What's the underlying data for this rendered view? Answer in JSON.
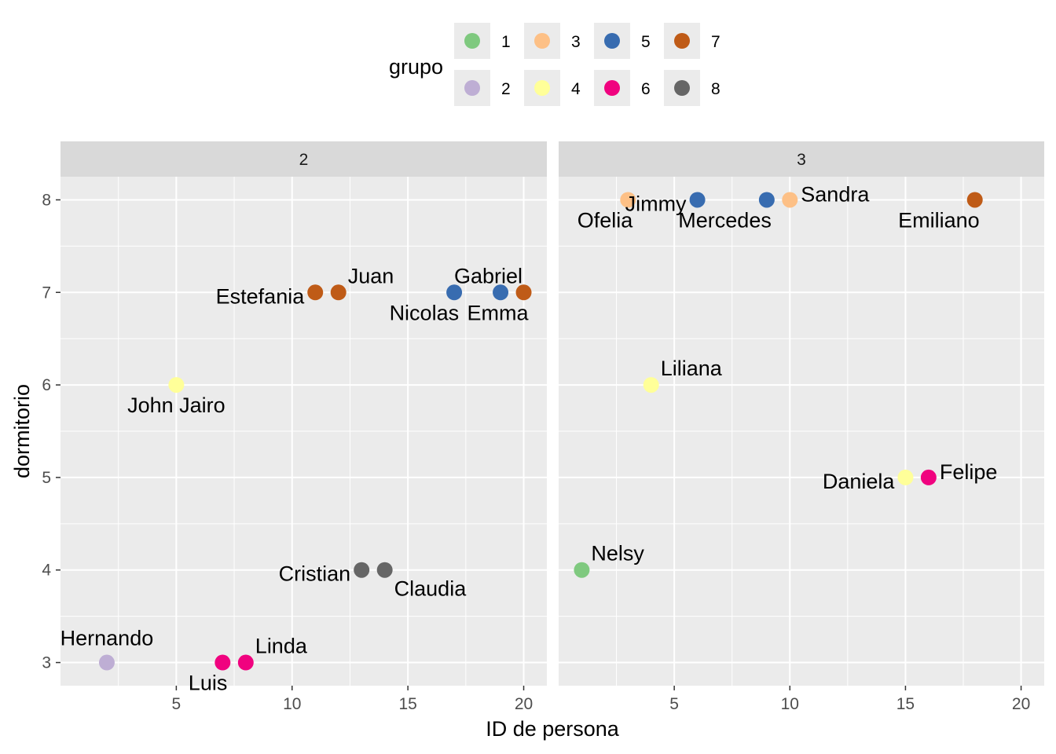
{
  "chart_data": {
    "type": "scatter",
    "xlabel": "ID de persona",
    "ylabel": "dormitorio",
    "xlim": [
      0,
      21
    ],
    "ylim": [
      2.75,
      8.25
    ],
    "x_ticks": [
      5,
      10,
      15,
      20
    ],
    "y_ticks": [
      3,
      4,
      5,
      6,
      7,
      8
    ],
    "legend": {
      "title": "grupo",
      "position": "top",
      "entries": [
        {
          "label": "1",
          "color": "#7fc97f"
        },
        {
          "label": "2",
          "color": "#beaed4"
        },
        {
          "label": "3",
          "color": "#fdc086"
        },
        {
          "label": "4",
          "color": "#ffff99"
        },
        {
          "label": "5",
          "color": "#386cb0"
        },
        {
          "label": "6",
          "color": "#f0027f"
        },
        {
          "label": "7",
          "color": "#bf5b17"
        },
        {
          "label": "8",
          "color": "#666666"
        }
      ]
    },
    "facets": [
      {
        "strip": "2",
        "points": [
          {
            "x": 2,
            "y": 3,
            "grupo": "2",
            "name": "Hernando",
            "pos": "above"
          },
          {
            "x": 5,
            "y": 6,
            "grupo": "4",
            "name": "John Jairo",
            "pos": "below"
          },
          {
            "x": 7,
            "y": 3,
            "grupo": "6",
            "name": "Luis",
            "pos": "below-left"
          },
          {
            "x": 8,
            "y": 3,
            "grupo": "6",
            "name": "Linda",
            "pos": "above-right"
          },
          {
            "x": 11,
            "y": 7,
            "grupo": "7",
            "name": "Estefania",
            "pos": "left"
          },
          {
            "x": 12,
            "y": 7,
            "grupo": "7",
            "name": "Juan",
            "pos": "above-right"
          },
          {
            "x": 13,
            "y": 4,
            "grupo": "8",
            "name": "Cristian",
            "pos": "left"
          },
          {
            "x": 14,
            "y": 4,
            "grupo": "8",
            "name": "Claudia",
            "pos": "below-right"
          },
          {
            "x": 17,
            "y": 7,
            "grupo": "5",
            "name": "Nicolas",
            "pos": "below-left"
          },
          {
            "x": 19,
            "y": 7,
            "grupo": "5",
            "name": "Gabriel",
            "pos": "above-left"
          },
          {
            "x": 20,
            "y": 7,
            "grupo": "7",
            "name": "Emma",
            "pos": "below-left"
          }
        ]
      },
      {
        "strip": "3",
        "points": [
          {
            "x": 1,
            "y": 4,
            "grupo": "1",
            "name": "Nelsy",
            "pos": "above-right"
          },
          {
            "x": 3,
            "y": 8,
            "grupo": "3",
            "name": "Ofelia",
            "pos": "below-left"
          },
          {
            "x": 4,
            "y": 6,
            "grupo": "4",
            "name": "Liliana",
            "pos": "above-right"
          },
          {
            "x": 6,
            "y": 8,
            "grupo": "5",
            "name": "Jimmy",
            "pos": "left"
          },
          {
            "x": 9,
            "y": 8,
            "grupo": "5",
            "name": "Mercedes",
            "pos": "below-left"
          },
          {
            "x": 10,
            "y": 8,
            "grupo": "3",
            "name": "Sandra",
            "pos": "right"
          },
          {
            "x": 15,
            "y": 5,
            "grupo": "4",
            "name": "Daniela",
            "pos": "left"
          },
          {
            "x": 16,
            "y": 5,
            "grupo": "6",
            "name": "Felipe",
            "pos": "right"
          },
          {
            "x": 18,
            "y": 8,
            "grupo": "7",
            "name": "Emiliano",
            "pos": "below-left"
          }
        ]
      }
    ]
  }
}
